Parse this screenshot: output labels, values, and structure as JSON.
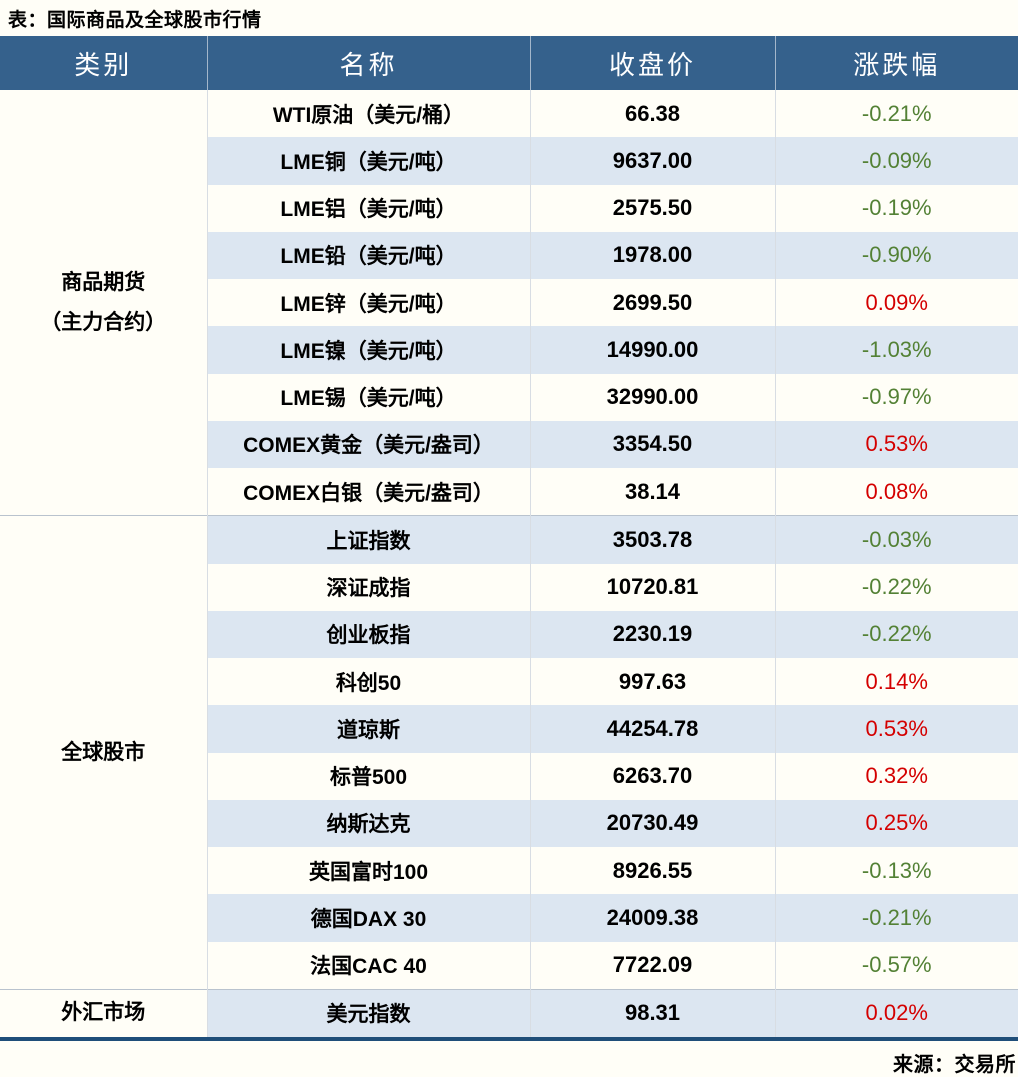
{
  "colors": {
    "header_bg": "#35618c",
    "stripe": "#dce6f1",
    "page_bg": "#fffef7",
    "border_dark": "#1f4e79",
    "up": "#d40000",
    "down": "#538135"
  },
  "chart_data": {
    "type": "table",
    "title": "表：国际商品及全球股市行情",
    "columns": [
      "类别",
      "名称",
      "收盘价",
      "涨跌幅"
    ],
    "groups": [
      {
        "category": "商品期货\n（主力合约）",
        "rows": [
          {
            "name": "WTI原油（美元/桶）",
            "close": "66.38",
            "change": "-0.21%",
            "direction": "down"
          },
          {
            "name": "LME铜（美元/吨）",
            "close": "9637.00",
            "change": "-0.09%",
            "direction": "down"
          },
          {
            "name": "LME铝（美元/吨）",
            "close": "2575.50",
            "change": "-0.19%",
            "direction": "down"
          },
          {
            "name": "LME铅（美元/吨）",
            "close": "1978.00",
            "change": "-0.90%",
            "direction": "down"
          },
          {
            "name": "LME锌（美元/吨）",
            "close": "2699.50",
            "change": "0.09%",
            "direction": "up"
          },
          {
            "name": "LME镍（美元/吨）",
            "close": "14990.00",
            "change": "-1.03%",
            "direction": "down"
          },
          {
            "name": "LME锡（美元/吨）",
            "close": "32990.00",
            "change": "-0.97%",
            "direction": "down"
          },
          {
            "name": "COMEX黄金（美元/盎司）",
            "close": "3354.50",
            "change": "0.53%",
            "direction": "up"
          },
          {
            "name": "COMEX白银（美元/盎司）",
            "close": "38.14",
            "change": "0.08%",
            "direction": "up"
          }
        ]
      },
      {
        "category": "全球股市",
        "rows": [
          {
            "name": "上证指数",
            "close": "3503.78",
            "change": "-0.03%",
            "direction": "down"
          },
          {
            "name": "深证成指",
            "close": "10720.81",
            "change": "-0.22%",
            "direction": "down"
          },
          {
            "name": "创业板指",
            "close": "2230.19",
            "change": "-0.22%",
            "direction": "down"
          },
          {
            "name": "科创50",
            "close": "997.63",
            "change": "0.14%",
            "direction": "up"
          },
          {
            "name": "道琼斯",
            "close": "44254.78",
            "change": "0.53%",
            "direction": "up"
          },
          {
            "name": "标普500",
            "close": "6263.70",
            "change": "0.32%",
            "direction": "up"
          },
          {
            "name": "纳斯达克",
            "close": "20730.49",
            "change": "0.25%",
            "direction": "up"
          },
          {
            "name": "英国富时100",
            "close": "8926.55",
            "change": "-0.13%",
            "direction": "down"
          },
          {
            "name": "德国DAX 30",
            "close": "24009.38",
            "change": "-0.21%",
            "direction": "down"
          },
          {
            "name": "法国CAC 40",
            "close": "7722.09",
            "change": "-0.57%",
            "direction": "down"
          }
        ]
      },
      {
        "category": "外汇市场",
        "rows": [
          {
            "name": "美元指数",
            "close": "98.31",
            "change": "0.02%",
            "direction": "up"
          }
        ]
      }
    ],
    "source": "来源：交易所"
  }
}
